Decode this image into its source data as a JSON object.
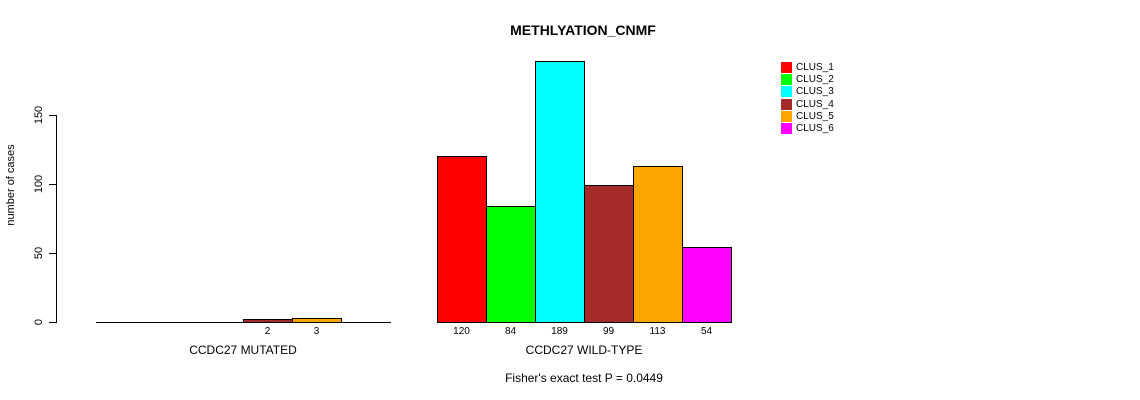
{
  "chart_data": {
    "type": "bar",
    "title": "METHLYATION_CNMF",
    "ylabel": "number of cases",
    "xlabel": "",
    "yticks": [
      0,
      50,
      100,
      150
    ],
    "ylim": [
      0,
      192
    ],
    "grid": false,
    "legend_position": "top-right",
    "categories": [
      "CLUS_1",
      "CLUS_2",
      "CLUS_3",
      "CLUS_4",
      "CLUS_5",
      "CLUS_6"
    ],
    "colors": [
      "#FF0000",
      "#00FF00",
      "#00FFFF",
      "#A52A2A",
      "#FFA500",
      "#FF00FF"
    ],
    "bar_border_color": "#000000",
    "background_color": "#FFFFFF",
    "groups": [
      {
        "label": "CCDC27 MUTATED",
        "values": [
          0,
          0,
          0,
          2,
          3,
          0
        ],
        "bar_labels": [
          "",
          "",
          "",
          "2",
          "3",
          ""
        ]
      },
      {
        "label": "CCDC27 WILD-TYPE",
        "values": [
          120,
          84,
          189,
          99,
          113,
          54
        ],
        "bar_labels": [
          "120",
          "84",
          "189",
          "99",
          "113",
          "54"
        ]
      }
    ],
    "annotation": "Fisher's exact test P = 0.0449"
  }
}
